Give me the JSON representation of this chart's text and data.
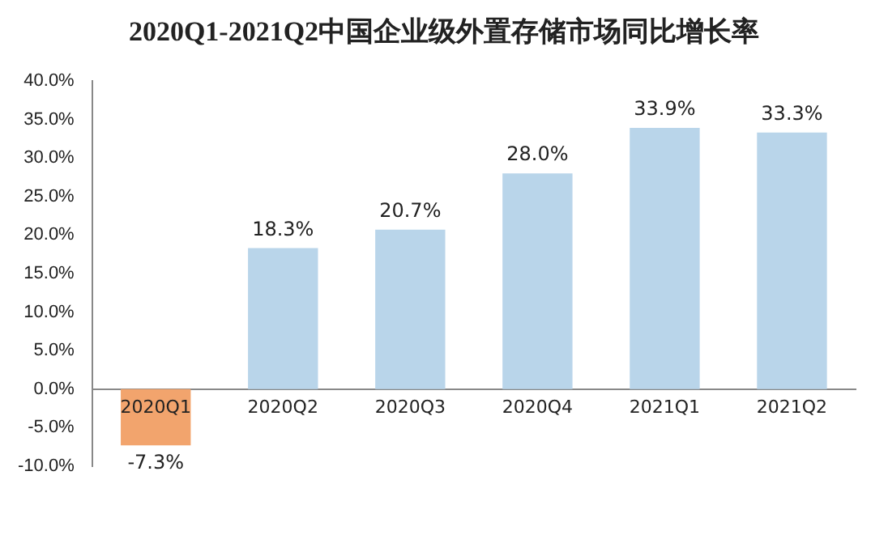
{
  "chart_data": {
    "type": "bar",
    "title": "2020Q1-2021Q2中国企业级外置存储市场同比增长率",
    "categories": [
      "2020Q1",
      "2020Q2",
      "2020Q3",
      "2020Q4",
      "2021Q1",
      "2021Q2"
    ],
    "values": [
      -7.3,
      18.3,
      20.7,
      28.0,
      33.9,
      33.3
    ],
    "colors": [
      "#f2a46d",
      "#b9d5ea",
      "#b9d5ea",
      "#b9d5ea",
      "#b9d5ea",
      "#b9d5ea"
    ],
    "value_labels": [
      "-7.3%",
      "18.3%",
      "20.7%",
      "28.0%",
      "33.9%",
      "33.3%"
    ],
    "ylim": [
      -10,
      40
    ],
    "yticks": [
      {
        "value": -10,
        "label": "-10.0%"
      },
      {
        "value": -5,
        "label": "-5.0%"
      },
      {
        "value": 0,
        "label": "0.0%"
      },
      {
        "value": 5,
        "label": "5.0%"
      },
      {
        "value": 10,
        "label": "10.0%"
      },
      {
        "value": 15,
        "label": "15.0%"
      },
      {
        "value": 20,
        "label": "20.0%"
      },
      {
        "value": 25,
        "label": "25.0%"
      },
      {
        "value": 30,
        "label": "30.0%"
      },
      {
        "value": 35,
        "label": "35.0%"
      },
      {
        "value": 40,
        "label": "40.0%"
      }
    ],
    "grid": false,
    "legend": false
  }
}
